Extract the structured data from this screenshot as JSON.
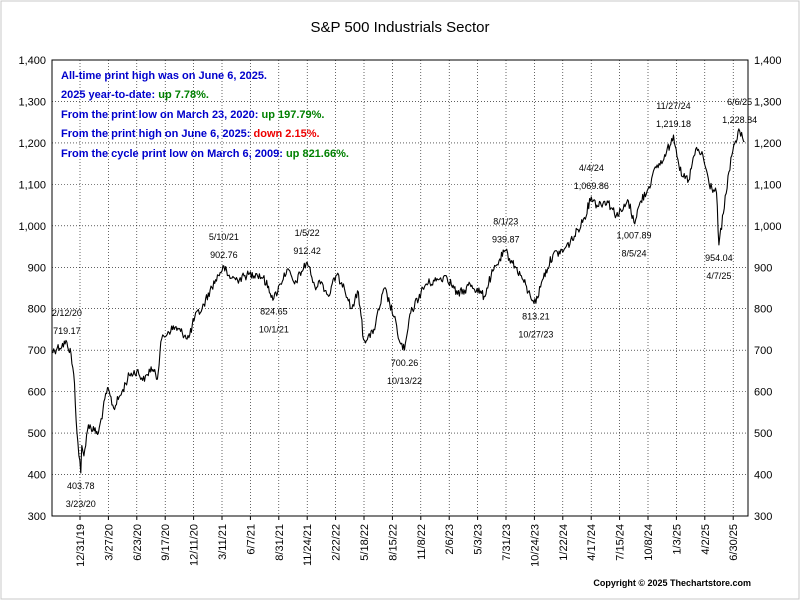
{
  "chart_data": {
    "type": "line",
    "title": "S&P 500 Industrials Sector",
    "series": [
      {
        "values": [
          [
            "2019-12-31",
            696
          ],
          [
            "2020-01-15",
            705
          ],
          [
            "2020-02-12",
            719.17
          ],
          [
            "2020-02-24",
            690
          ],
          [
            "2020-03-05",
            620
          ],
          [
            "2020-03-12",
            500
          ],
          [
            "2020-03-23",
            403.78
          ],
          [
            "2020-03-26",
            470
          ],
          [
            "2020-04-01",
            445
          ],
          [
            "2020-04-14",
            520
          ],
          [
            "2020-05-01",
            505
          ],
          [
            "2020-05-13",
            500
          ],
          [
            "2020-06-08",
            610
          ],
          [
            "2020-06-26",
            560
          ],
          [
            "2020-07-20",
            600
          ],
          [
            "2020-08-10",
            640
          ],
          [
            "2020-09-01",
            650
          ],
          [
            "2020-09-23",
            625
          ],
          [
            "2020-10-12",
            660
          ],
          [
            "2020-10-30",
            630
          ],
          [
            "2020-11-09",
            720
          ],
          [
            "2020-11-30",
            745
          ],
          [
            "2020-12-20",
            755
          ],
          [
            "2021-01-05",
            745
          ],
          [
            "2021-01-29",
            730
          ],
          [
            "2021-02-15",
            780
          ],
          [
            "2021-03-08",
            800
          ],
          [
            "2021-03-31",
            845
          ],
          [
            "2021-04-16",
            870
          ],
          [
            "2021-05-10",
            902.76
          ],
          [
            "2021-05-20",
            880
          ],
          [
            "2021-06-18",
            870
          ],
          [
            "2021-07-15",
            880
          ],
          [
            "2021-08-10",
            885
          ],
          [
            "2021-08-31",
            875
          ],
          [
            "2021-10-01",
            824.65
          ],
          [
            "2021-10-20",
            860
          ],
          [
            "2021-11-08",
            895
          ],
          [
            "2021-11-30",
            860
          ],
          [
            "2021-12-20",
            890
          ],
          [
            "2022-01-05",
            912.42
          ],
          [
            "2022-01-27",
            855
          ],
          [
            "2022-02-15",
            865
          ],
          [
            "2022-03-08",
            830
          ],
          [
            "2022-03-29",
            880
          ],
          [
            "2022-04-20",
            860
          ],
          [
            "2022-05-12",
            800
          ],
          [
            "2022-06-02",
            840
          ],
          [
            "2022-06-17",
            725
          ],
          [
            "2022-07-14",
            740
          ],
          [
            "2022-08-16",
            850
          ],
          [
            "2022-09-13",
            780
          ],
          [
            "2022-09-30",
            718
          ],
          [
            "2022-10-13",
            700.26
          ],
          [
            "2022-10-31",
            790
          ],
          [
            "2022-11-30",
            840
          ],
          [
            "2022-12-15",
            860
          ],
          [
            "2023-01-20",
            870
          ],
          [
            "2023-02-10",
            880
          ],
          [
            "2023-03-15",
            835
          ],
          [
            "2023-04-05",
            845
          ],
          [
            "2023-04-20",
            860
          ],
          [
            "2023-05-31",
            830
          ],
          [
            "2023-06-20",
            880
          ],
          [
            "2023-07-15",
            920
          ],
          [
            "2023-08-01",
            939.87
          ],
          [
            "2023-08-20",
            910
          ],
          [
            "2023-09-15",
            880
          ],
          [
            "2023-10-05",
            840
          ],
          [
            "2023-10-27",
            813.21
          ],
          [
            "2023-11-15",
            870
          ],
          [
            "2023-12-15",
            930
          ],
          [
            "2024-01-15",
            940
          ],
          [
            "2024-02-15",
            975
          ],
          [
            "2024-03-15",
            1020
          ],
          [
            "2024-04-04",
            1069.86
          ],
          [
            "2024-04-20",
            1050
          ],
          [
            "2024-05-20",
            1060
          ],
          [
            "2024-06-15",
            1025
          ],
          [
            "2024-07-05",
            1040
          ],
          [
            "2024-07-20",
            1060
          ],
          [
            "2024-08-05",
            1007.89
          ],
          [
            "2024-08-25",
            1060
          ],
          [
            "2024-09-15",
            1090
          ],
          [
            "2024-10-08",
            1140
          ],
          [
            "2024-10-30",
            1160
          ],
          [
            "2024-11-27",
            1219.18
          ],
          [
            "2024-12-20",
            1120
          ],
          [
            "2025-01-10",
            1110
          ],
          [
            "2025-01-30",
            1185
          ],
          [
            "2025-02-20",
            1170
          ],
          [
            "2025-03-10",
            1100
          ],
          [
            "2025-03-31",
            1080
          ],
          [
            "2025-04-07",
            954.04
          ],
          [
            "2025-04-20",
            1030
          ],
          [
            "2025-05-06",
            1130
          ],
          [
            "2025-05-20",
            1195
          ],
          [
            "2025-06-06",
            1228.84
          ],
          [
            "2025-06-20",
            1203
          ]
        ]
      }
    ],
    "ylim": [
      300,
      1400
    ],
    "y_ticks": [
      "300",
      "400",
      "500",
      "600",
      "700",
      "800",
      "900",
      "1,000",
      "1,100",
      "1,200",
      "1,300",
      "1,400"
    ],
    "x_ticks": [
      "12/31/19",
      "3/27/20",
      "6/23/20",
      "9/17/20",
      "12/11/20",
      "3/11/21",
      "6/7/21",
      "8/31/21",
      "11/24/21",
      "2/22/22",
      "5/18/22",
      "8/15/22",
      "11/8/22",
      "2/6/23",
      "5/3/23",
      "7/31/23",
      "10/24/23",
      "1/22/24",
      "4/17/24",
      "7/15/24",
      "10/8/24",
      "1/3/25",
      "4/2/25",
      "6/30/25"
    ],
    "x_range": [
      "2019-12-31",
      "2025-06-30"
    ],
    "grid": "both",
    "annotations": [
      {
        "date": "2020-02-12",
        "value": 719.17,
        "label": "719.17",
        "date_label": "2/12/20",
        "position": "above"
      },
      {
        "date": "2020-03-23",
        "value": 403.78,
        "label": "403.78",
        "date_label": "3/23/20",
        "position": "below"
      },
      {
        "date": "2021-05-10",
        "value": 902.76,
        "label": "902.76",
        "date_label": "5/10/21",
        "position": "above"
      },
      {
        "date": "2021-10-01",
        "value": 824.65,
        "label": "824.65",
        "date_label": "10/1/21",
        "position": "below"
      },
      {
        "date": "2022-01-05",
        "value": 912.42,
        "label": "912.42",
        "date_label": "1/5/22",
        "position": "above"
      },
      {
        "date": "2022-10-13",
        "value": 700.26,
        "label": "700.26",
        "date_label": "10/13/22",
        "position": "below"
      },
      {
        "date": "2023-08-01",
        "value": 939.87,
        "label": "939.87",
        "date_label": "8/1/23",
        "position": "above"
      },
      {
        "date": "2023-10-27",
        "value": 813.21,
        "label": "813.21",
        "date_label": "10/27/23",
        "position": "below"
      },
      {
        "date": "2024-04-04",
        "value": 1069.86,
        "label": "1,069.86",
        "date_label": "4/4/24",
        "position": "above"
      },
      {
        "date": "2024-08-05",
        "value": 1007.89,
        "label": "1,007.89",
        "date_label": "8/5/24",
        "position": "below"
      },
      {
        "date": "2024-11-27",
        "value": 1219.18,
        "label": "1,219.18",
        "date_label": "11/27/24",
        "position": "above"
      },
      {
        "date": "2025-04-07",
        "value": 954.04,
        "label": "954.04",
        "date_label": "4/7/25",
        "position": "below"
      },
      {
        "date": "2025-06-06",
        "value": 1228.84,
        "label": "1,228.84",
        "date_label": "6/6/25",
        "position": "above"
      }
    ],
    "text_box": [
      {
        "parts": [
          {
            "text": "All-time print high was on June 6, 2025.",
            "color": "#0000cc"
          }
        ]
      },
      {
        "parts": [
          {
            "text": "2025 year-to-date:  ",
            "color": "#0000cc"
          },
          {
            "text": "up 7.78%.",
            "color": "#008000"
          }
        ]
      },
      {
        "parts": [
          {
            "text": "From the print low on March 23, 2020:  ",
            "color": "#0000cc"
          },
          {
            "text": "up 197.79%.",
            "color": "#008000"
          }
        ]
      },
      {
        "parts": [
          {
            "text": "From the print high on June 6, 2025:  ",
            "color": "#0000cc"
          },
          {
            "text": "down 2.15%.",
            "color": "#ee0000"
          }
        ]
      },
      {
        "parts": [
          {
            "text": "From the cycle print low on March 6, 2009:  ",
            "color": "#0000cc"
          },
          {
            "text": "up 821.66%.",
            "color": "#008000"
          }
        ]
      }
    ],
    "colors": {
      "line": "#000000",
      "grid": "#000000",
      "frame": "#000000"
    }
  },
  "footer": {
    "copyright": "Copyright © 2025 Thechartstore.com"
  }
}
